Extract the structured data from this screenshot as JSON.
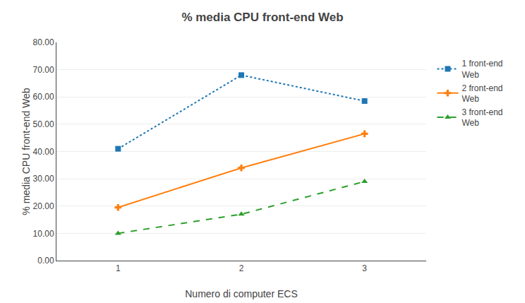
{
  "chart_data": {
    "type": "line",
    "title": "% media CPU front-end Web",
    "xlabel": "Numero di computer ECS",
    "ylabel": "% media CPU front-end Web",
    "x": [
      1,
      2,
      3
    ],
    "series": [
      {
        "name": "1 front-end\nWeb",
        "values": [
          41.0,
          68.0,
          58.5
        ],
        "line_style": "dotted",
        "marker": "square"
      },
      {
        "name": "2 front-end\nWeb",
        "values": [
          19.5,
          34.0,
          46.5
        ],
        "line_style": "solid",
        "marker": "plus"
      },
      {
        "name": "3 front-end\nWeb",
        "values": [
          10.0,
          17.0,
          29.0
        ],
        "line_style": "dashed",
        "marker": "triangle"
      }
    ],
    "xlim": [
      0.5,
      3.5
    ],
    "xticks": [
      1,
      2,
      3
    ],
    "ylim": [
      0,
      80
    ],
    "yticks": [
      {
        "value": 0,
        "label": "0.00"
      },
      {
        "value": 10,
        "label": "10.00"
      },
      {
        "value": 20,
        "label": "20.00"
      },
      {
        "value": 30,
        "label": "30.00"
      },
      {
        "value": 40,
        "label": "40.00"
      },
      {
        "value": 50,
        "label": "50.00"
      },
      {
        "value": 60,
        "label": "60.00"
      },
      {
        "value": 70,
        "label": "70.00"
      },
      {
        "value": 80,
        "label": "80.00"
      }
    ],
    "grid": true,
    "legend": "right"
  }
}
